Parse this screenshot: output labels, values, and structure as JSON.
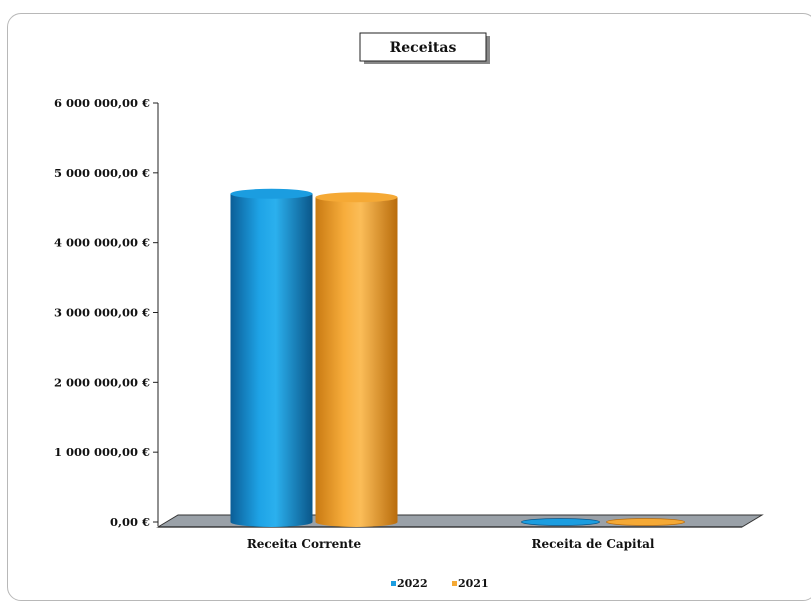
{
  "chart_data": {
    "type": "bar",
    "title": "Receitas",
    "categories": [
      "Receita Corrente",
      "Receita de Capital"
    ],
    "series": [
      {
        "name": "2022",
        "values": [
          4700000,
          0
        ],
        "color": "#1b9de0"
      },
      {
        "name": "2021",
        "values": [
          4650000,
          0
        ],
        "color": "#f5a935"
      }
    ],
    "yticks": [
      "0,00 €",
      "1 000 000,00 €",
      "2 000 000,00 €",
      "3 000 000,00 €",
      "4 000 000,00 €",
      "5 000 000,00 €",
      "6 000 000,00 €"
    ],
    "ylim": [
      0,
      6000000
    ],
    "xlabel": "",
    "ylabel": "",
    "legend_position": "bottom",
    "grid": false,
    "style": "3d-cylinder"
  }
}
